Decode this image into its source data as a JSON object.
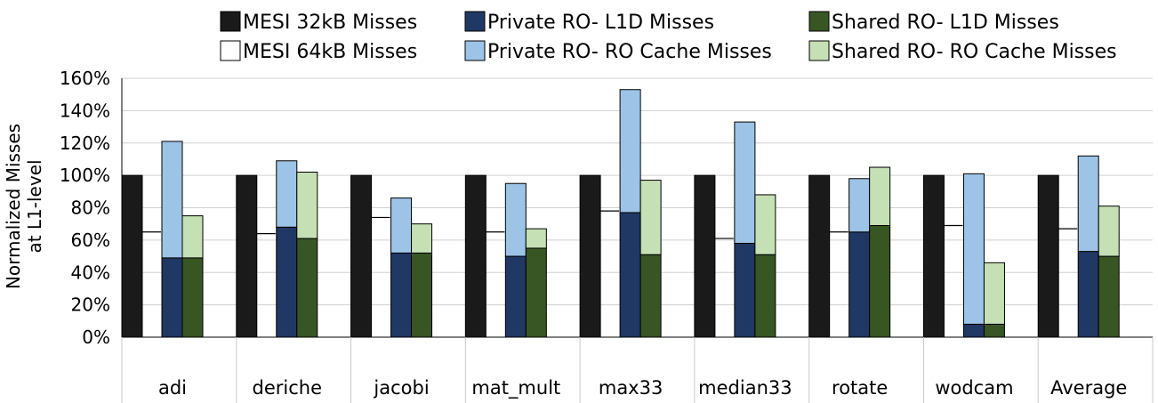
{
  "chart_data": {
    "type": "bar",
    "ylabel": [
      "Normalized Misses",
      "at L1-level"
    ],
    "ylim": [
      0,
      160
    ],
    "yticks": [
      "0%",
      "20%",
      "40%",
      "60%",
      "80%",
      "100%",
      "120%",
      "140%",
      "160%"
    ],
    "grid": true,
    "legend_position": "top",
    "categories": [
      "adi",
      "deriche",
      "jacobi",
      "mat_mult",
      "max33",
      "median33",
      "rotate",
      "wodcam",
      "Average"
    ],
    "series": [
      {
        "name": "MESI 32kB Misses",
        "color": "#1a1a1a",
        "values": [
          100,
          100,
          100,
          100,
          100,
          100,
          100,
          100,
          100
        ]
      },
      {
        "name": "MESI 64kB  Misses",
        "color": "#ffffff",
        "values": [
          65,
          64,
          74,
          65,
          78,
          61,
          65,
          69,
          67
        ]
      },
      {
        "name": "Private RO- L1D Misses",
        "color": "#1f3864",
        "stack": "private",
        "values": [
          49,
          68,
          52,
          50,
          77,
          58,
          65,
          8,
          53
        ]
      },
      {
        "name": "Private RO- RO Cache Misses",
        "color": "#9dc3e6",
        "stack": "private",
        "values": [
          72,
          41,
          34,
          45,
          76,
          75,
          33,
          93,
          59
        ]
      },
      {
        "name": "Shared RO- L1D Misses",
        "color": "#375623",
        "stack": "shared",
        "values": [
          49,
          61,
          52,
          55,
          51,
          51,
          69,
          8,
          50
        ]
      },
      {
        "name": "Shared RO- RO Cache Misses",
        "color": "#c5e0b4",
        "stack": "shared",
        "values": [
          26,
          41,
          18,
          12,
          46,
          37,
          36,
          38,
          31
        ]
      }
    ]
  }
}
